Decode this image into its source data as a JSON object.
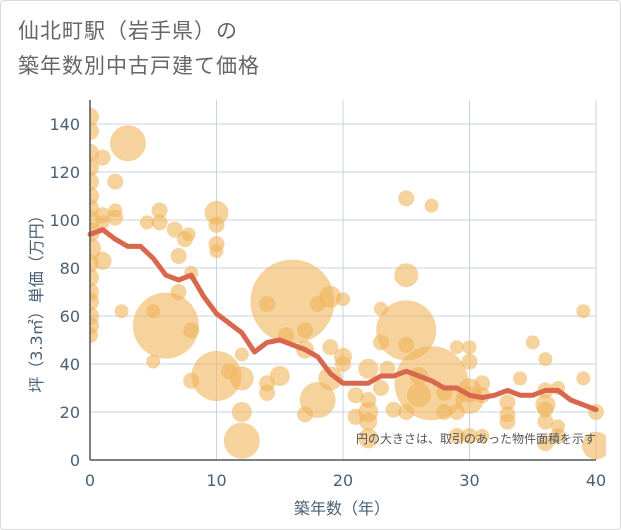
{
  "title_line1": "仙北町駅（岩手県）の",
  "title_line2": "築年数別中古戸建て価格",
  "chart_data": {
    "type": "scatter",
    "xlabel": "築年数（年）",
    "ylabel": "坪（3.3㎡）単価（万円）",
    "xlim": [
      0,
      40
    ],
    "ylim": [
      0,
      150
    ],
    "xticks": [
      0,
      10,
      20,
      30,
      40
    ],
    "yticks": [
      0,
      20,
      40,
      60,
      80,
      100,
      120,
      140
    ],
    "grid": true,
    "annotation": "円の大きさは、取引のあった物件面積を示す",
    "colors": {
      "bubble": "#f0b45a",
      "line": "#d9674e",
      "grid": "#c9d4df",
      "axis": "#555555"
    },
    "bubbles": [
      {
        "x": 0,
        "y": 143,
        "size": 9
      },
      {
        "x": 0,
        "y": 137,
        "size": 9
      },
      {
        "x": 0,
        "y": 128,
        "size": 9
      },
      {
        "x": 0,
        "y": 122,
        "size": 9
      },
      {
        "x": 0,
        "y": 116,
        "size": 9
      },
      {
        "x": 0,
        "y": 110,
        "size": 9
      },
      {
        "x": 0,
        "y": 105,
        "size": 9
      },
      {
        "x": 0,
        "y": 100,
        "size": 10
      },
      {
        "x": 0,
        "y": 95,
        "size": 10
      },
      {
        "x": 0,
        "y": 88,
        "size": 11
      },
      {
        "x": 0,
        "y": 82,
        "size": 9
      },
      {
        "x": 0,
        "y": 76,
        "size": 9
      },
      {
        "x": 0,
        "y": 70,
        "size": 9
      },
      {
        "x": 0,
        "y": 66,
        "size": 9
      },
      {
        "x": 0,
        "y": 60,
        "size": 9
      },
      {
        "x": 0,
        "y": 56,
        "size": 9
      },
      {
        "x": 0,
        "y": 52,
        "size": 8
      },
      {
        "x": 1,
        "y": 126,
        "size": 8
      },
      {
        "x": 1,
        "y": 102,
        "size": 8
      },
      {
        "x": 1,
        "y": 99,
        "size": 7
      },
      {
        "x": 1,
        "y": 83,
        "size": 9
      },
      {
        "x": 2,
        "y": 116,
        "size": 8
      },
      {
        "x": 2,
        "y": 104,
        "size": 7
      },
      {
        "x": 2,
        "y": 101,
        "size": 8
      },
      {
        "x": 2.5,
        "y": 62,
        "size": 7
      },
      {
        "x": 3,
        "y": 132,
        "size": 18
      },
      {
        "x": 4.5,
        "y": 99,
        "size": 7
      },
      {
        "x": 5,
        "y": 62,
        "size": 7
      },
      {
        "x": 5,
        "y": 41,
        "size": 7
      },
      {
        "x": 5.5,
        "y": 104,
        "size": 8
      },
      {
        "x": 5.5,
        "y": 99,
        "size": 8
      },
      {
        "x": 6,
        "y": 56,
        "size": 33
      },
      {
        "x": 6.7,
        "y": 96,
        "size": 8
      },
      {
        "x": 7,
        "y": 85,
        "size": 8
      },
      {
        "x": 7,
        "y": 70,
        "size": 8
      },
      {
        "x": 7.5,
        "y": 92,
        "size": 8
      },
      {
        "x": 7.8,
        "y": 94,
        "size": 7
      },
      {
        "x": 8,
        "y": 78,
        "size": 7
      },
      {
        "x": 8,
        "y": 54,
        "size": 8
      },
      {
        "x": 8,
        "y": 33,
        "size": 8
      },
      {
        "x": 10,
        "y": 103,
        "size": 12
      },
      {
        "x": 10,
        "y": 98,
        "size": 8
      },
      {
        "x": 10,
        "y": 90,
        "size": 8
      },
      {
        "x": 10,
        "y": 87,
        "size": 7
      },
      {
        "x": 10,
        "y": 35,
        "size": 25
      },
      {
        "x": 11,
        "y": 37,
        "size": 8
      },
      {
        "x": 12,
        "y": 44,
        "size": 7
      },
      {
        "x": 12,
        "y": 34,
        "size": 12
      },
      {
        "x": 12,
        "y": 20,
        "size": 10
      },
      {
        "x": 12,
        "y": 8,
        "size": 18
      },
      {
        "x": 14,
        "y": 65,
        "size": 8
      },
      {
        "x": 14,
        "y": 32,
        "size": 8
      },
      {
        "x": 14,
        "y": 28,
        "size": 8
      },
      {
        "x": 15,
        "y": 35,
        "size": 10
      },
      {
        "x": 15.5,
        "y": 52,
        "size": 8
      },
      {
        "x": 16,
        "y": 66,
        "size": 42
      },
      {
        "x": 17,
        "y": 46,
        "size": 9
      },
      {
        "x": 17,
        "y": 19,
        "size": 8
      },
      {
        "x": 17,
        "y": 54,
        "size": 8
      },
      {
        "x": 18,
        "y": 25,
        "size": 18
      },
      {
        "x": 18,
        "y": 65,
        "size": 8
      },
      {
        "x": 19,
        "y": 68,
        "size": 11
      },
      {
        "x": 19,
        "y": 47,
        "size": 8
      },
      {
        "x": 19,
        "y": 34,
        "size": 12
      },
      {
        "x": 20,
        "y": 67,
        "size": 7
      },
      {
        "x": 20,
        "y": 43,
        "size": 9
      },
      {
        "x": 20,
        "y": 40,
        "size": 8
      },
      {
        "x": 21,
        "y": 27,
        "size": 8
      },
      {
        "x": 21,
        "y": 18,
        "size": 8
      },
      {
        "x": 22,
        "y": 38,
        "size": 10
      },
      {
        "x": 22,
        "y": 25,
        "size": 8
      },
      {
        "x": 22,
        "y": 20,
        "size": 10
      },
      {
        "x": 22,
        "y": 16,
        "size": 9
      },
      {
        "x": 22,
        "y": 9,
        "size": 10
      },
      {
        "x": 23,
        "y": 63,
        "size": 7
      },
      {
        "x": 23,
        "y": 49,
        "size": 8
      },
      {
        "x": 23,
        "y": 30,
        "size": 8
      },
      {
        "x": 23.5,
        "y": 38,
        "size": 8
      },
      {
        "x": 24,
        "y": 21,
        "size": 8
      },
      {
        "x": 25,
        "y": 109,
        "size": 8
      },
      {
        "x": 25,
        "y": 77,
        "size": 12
      },
      {
        "x": 25,
        "y": 54,
        "size": 30
      },
      {
        "x": 25,
        "y": 48,
        "size": 8
      },
      {
        "x": 25,
        "y": 20,
        "size": 8
      },
      {
        "x": 26,
        "y": 35,
        "size": 9
      },
      {
        "x": 26,
        "y": 27,
        "size": 12
      },
      {
        "x": 27,
        "y": 106,
        "size": 7
      },
      {
        "x": 27,
        "y": 32,
        "size": 37
      },
      {
        "x": 28,
        "y": 28,
        "size": 8
      },
      {
        "x": 28,
        "y": 20,
        "size": 8
      },
      {
        "x": 29,
        "y": 47,
        "size": 7
      },
      {
        "x": 29,
        "y": 20,
        "size": 8
      },
      {
        "x": 29,
        "y": 10,
        "size": 8
      },
      {
        "x": 30,
        "y": 47,
        "size": 7
      },
      {
        "x": 30,
        "y": 41,
        "size": 8
      },
      {
        "x": 30,
        "y": 29,
        "size": 12
      },
      {
        "x": 30,
        "y": 25,
        "size": 14
      },
      {
        "x": 30,
        "y": 10,
        "size": 8
      },
      {
        "x": 31,
        "y": 32,
        "size": 8
      },
      {
        "x": 31,
        "y": 27,
        "size": 8
      },
      {
        "x": 31,
        "y": 10,
        "size": 7
      },
      {
        "x": 33,
        "y": 24,
        "size": 8
      },
      {
        "x": 33,
        "y": 19,
        "size": 8
      },
      {
        "x": 33,
        "y": 16,
        "size": 8
      },
      {
        "x": 34,
        "y": 34,
        "size": 7
      },
      {
        "x": 35,
        "y": 49,
        "size": 7
      },
      {
        "x": 36,
        "y": 42,
        "size": 7
      },
      {
        "x": 36,
        "y": 29,
        "size": 8
      },
      {
        "x": 36,
        "y": 23,
        "size": 10
      },
      {
        "x": 36,
        "y": 21,
        "size": 8
      },
      {
        "x": 36,
        "y": 16,
        "size": 8
      },
      {
        "x": 36,
        "y": 7,
        "size": 8
      },
      {
        "x": 37,
        "y": 30,
        "size": 7
      },
      {
        "x": 37,
        "y": 14,
        "size": 7
      },
      {
        "x": 37,
        "y": 10,
        "size": 8
      },
      {
        "x": 39,
        "y": 62,
        "size": 7
      },
      {
        "x": 39,
        "y": 34,
        "size": 7
      },
      {
        "x": 40,
        "y": 20,
        "size": 8
      },
      {
        "x": 40,
        "y": 6,
        "size": 14
      }
    ],
    "trend": {
      "x": [
        0,
        1,
        2,
        3,
        4,
        5,
        6,
        7,
        8,
        9,
        10,
        11,
        12,
        13,
        14,
        15,
        16,
        17,
        18,
        19,
        20,
        21,
        22,
        23,
        24,
        25,
        26,
        27,
        28,
        29,
        30,
        31,
        32,
        33,
        34,
        35,
        36,
        37,
        38,
        39,
        40
      ],
      "y": [
        94,
        96,
        92,
        89,
        89,
        84,
        77,
        75,
        77,
        68,
        61,
        57,
        53,
        45,
        49,
        50,
        48,
        46,
        43,
        36,
        32,
        32,
        32,
        35,
        35,
        37,
        35,
        33,
        30,
        30,
        27,
        26,
        27,
        29,
        27,
        27,
        29,
        29,
        25,
        23,
        21
      ]
    }
  }
}
